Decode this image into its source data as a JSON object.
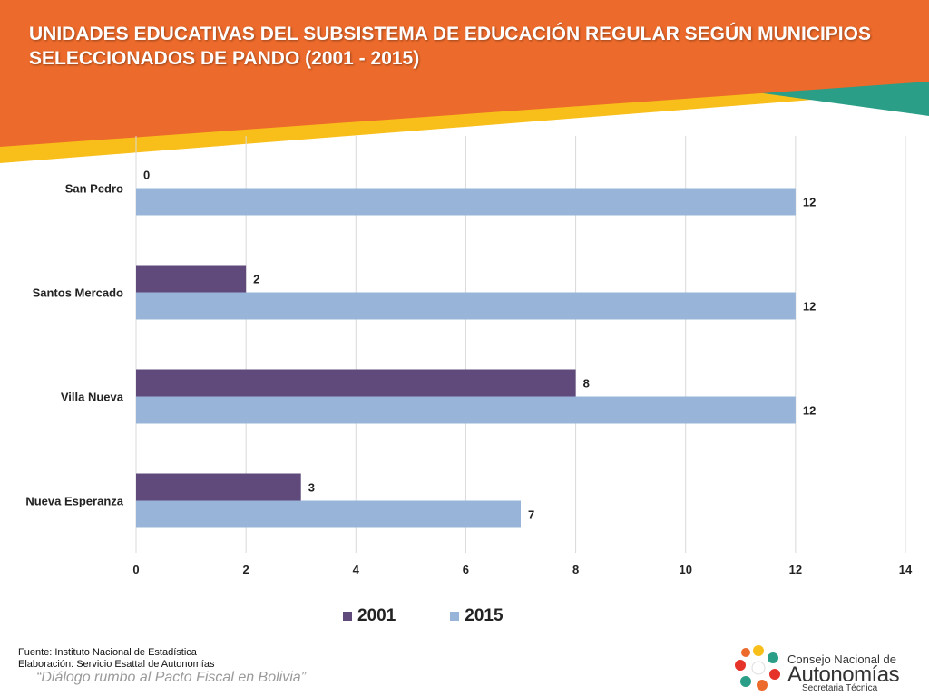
{
  "header": {
    "title": "UNIDADES EDUCATIVAS DEL SUBSISTEMA DE EDUCACIÓN REGULAR SEGÚN MUNICIPIOS SELECCIONADOS DE PANDO (2001 - 2015)"
  },
  "colors": {
    "header_orange": "#EC6A2B",
    "accent_yellow": "#F8BE1A",
    "accent_teal": "#2A9E86",
    "series_2001": "#5F4A7B",
    "series_2015": "#98B4D9"
  },
  "chart_data": {
    "type": "bar",
    "orientation": "horizontal",
    "categories": [
      "San Pedro",
      "Santos Mercado",
      "Villa Nueva",
      "Nueva Esperanza"
    ],
    "series": [
      {
        "name": "2001",
        "values": [
          0,
          2,
          8,
          3
        ]
      },
      {
        "name": "2015",
        "values": [
          12,
          12,
          12,
          7
        ]
      }
    ],
    "xlim": [
      0,
      14
    ],
    "xticks": [
      0,
      2,
      4,
      6,
      8,
      10,
      12,
      14
    ],
    "grid": true,
    "legend_position": "bottom"
  },
  "footer": {
    "source": "Fuente: Instituto Nacional de Estadística",
    "elaboration": "Elaboración: Servicio Esattal de Autonomías",
    "slogan": "“Diálogo rumbo al Pacto Fiscal en Bolivia”"
  },
  "logo": {
    "line1": "Consejo Nacional de",
    "line2": "Autonomías",
    "line3": "Secretaria Técnica"
  }
}
